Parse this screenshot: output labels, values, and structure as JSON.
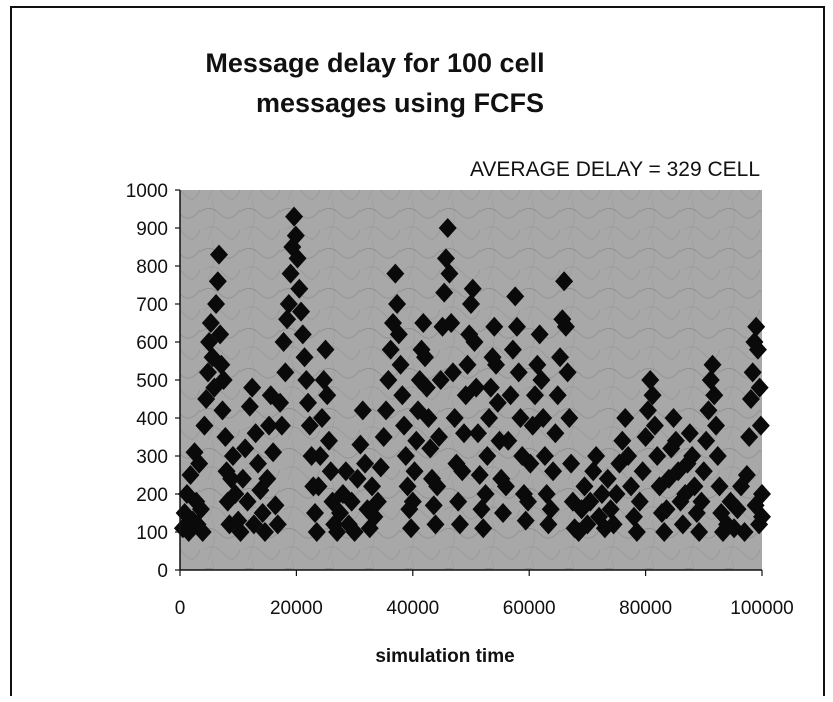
{
  "chart_data": {
    "type": "scatter",
    "title_line1": "Message delay for 100 cell",
    "title_line2": "messages using FCFS",
    "annotation": "AVERAGE DELAY = 329 CELL",
    "xlabel": "simulation time",
    "ylabel": "",
    "xlim": [
      0,
      100000
    ],
    "ylim": [
      0,
      1000
    ],
    "x_ticks": [
      "0",
      "20000",
      "40000",
      "60000",
      "80000",
      "100000"
    ],
    "y_ticks": [
      "0",
      "100",
      "200",
      "300",
      "400",
      "500",
      "600",
      "700",
      "800",
      "900",
      "1000"
    ],
    "grid": false,
    "legend": "none",
    "marker_color": "#0a0a0a",
    "plot_background": "#a8a8a8",
    "series": [
      {
        "marker": "diamond",
        "points": [
          [
            500,
            110
          ],
          [
            800,
            150
          ],
          [
            1200,
            200
          ],
          [
            1500,
            100
          ],
          [
            1800,
            250
          ],
          [
            2200,
            130
          ],
          [
            2500,
            310
          ],
          [
            2800,
            180
          ],
          [
            3000,
            120
          ],
          [
            3300,
            280
          ],
          [
            3600,
            160
          ],
          [
            3900,
            100
          ],
          [
            4200,
            380
          ],
          [
            4500,
            450
          ],
          [
            4800,
            520
          ],
          [
            5000,
            600
          ],
          [
            5300,
            650
          ],
          [
            5600,
            560
          ],
          [
            5900,
            480
          ],
          [
            6200,
            700
          ],
          [
            6500,
            760
          ],
          [
            6700,
            830
          ],
          [
            6900,
            620
          ],
          [
            7100,
            540
          ],
          [
            7300,
            420
          ],
          [
            7500,
            500
          ],
          [
            7800,
            350
          ],
          [
            8000,
            260
          ],
          [
            8200,
            180
          ],
          [
            8500,
            120
          ],
          [
            8800,
            240
          ],
          [
            9100,
            300
          ],
          [
            9500,
            200
          ],
          [
            10000,
            130
          ],
          [
            10400,
            100
          ],
          [
            10800,
            240
          ],
          [
            11200,
            320
          ],
          [
            11600,
            180
          ],
          [
            12000,
            430
          ],
          [
            12400,
            480
          ],
          [
            12700,
            120
          ],
          [
            13000,
            360
          ],
          [
            13400,
            280
          ],
          [
            13800,
            210
          ],
          [
            14200,
            150
          ],
          [
            14600,
            100
          ],
          [
            15000,
            240
          ],
          [
            15300,
            380
          ],
          [
            15600,
            460
          ],
          [
            16000,
            310
          ],
          [
            16400,
            170
          ],
          [
            16800,
            120
          ],
          [
            17200,
            440
          ],
          [
            17500,
            380
          ],
          [
            17800,
            600
          ],
          [
            18100,
            520
          ],
          [
            18400,
            660
          ],
          [
            18700,
            700
          ],
          [
            19000,
            780
          ],
          [
            19300,
            850
          ],
          [
            19600,
            930
          ],
          [
            19900,
            880
          ],
          [
            20200,
            820
          ],
          [
            20500,
            740
          ],
          [
            20800,
            680
          ],
          [
            21100,
            620
          ],
          [
            21400,
            560
          ],
          [
            21700,
            500
          ],
          [
            22000,
            440
          ],
          [
            22300,
            380
          ],
          [
            22600,
            300
          ],
          [
            22900,
            220
          ],
          [
            23200,
            150
          ],
          [
            23500,
            100
          ],
          [
            23800,
            220
          ],
          [
            24100,
            300
          ],
          [
            24400,
            400
          ],
          [
            24700,
            500
          ],
          [
            25000,
            580
          ],
          [
            25300,
            460
          ],
          [
            25600,
            340
          ],
          [
            25900,
            260
          ],
          [
            26200,
            180
          ],
          [
            26500,
            120
          ],
          [
            27000,
            100
          ],
          [
            27500,
            150
          ],
          [
            28000,
            200
          ],
          [
            28500,
            260
          ],
          [
            29000,
            120
          ],
          [
            29500,
            180
          ],
          [
            30000,
            100
          ],
          [
            30500,
            240
          ],
          [
            31000,
            330
          ],
          [
            31400,
            420
          ],
          [
            31800,
            280
          ],
          [
            32200,
            160
          ],
          [
            32600,
            110
          ],
          [
            33000,
            220
          ],
          [
            33400,
            140
          ],
          [
            34000,
            180
          ],
          [
            34500,
            270
          ],
          [
            35000,
            350
          ],
          [
            35400,
            420
          ],
          [
            35800,
            500
          ],
          [
            36200,
            580
          ],
          [
            36600,
            650
          ],
          [
            37000,
            780
          ],
          [
            37300,
            700
          ],
          [
            37600,
            620
          ],
          [
            37900,
            540
          ],
          [
            38200,
            460
          ],
          [
            38500,
            380
          ],
          [
            38800,
            300
          ],
          [
            39100,
            220
          ],
          [
            39400,
            160
          ],
          [
            39700,
            110
          ],
          [
            40000,
            180
          ],
          [
            40300,
            260
          ],
          [
            40600,
            340
          ],
          [
            40900,
            420
          ],
          [
            41200,
            500
          ],
          [
            41500,
            580
          ],
          [
            41800,
            650
          ],
          [
            42100,
            560
          ],
          [
            42400,
            480
          ],
          [
            42700,
            400
          ],
          [
            43000,
            320
          ],
          [
            43300,
            240
          ],
          [
            43600,
            170
          ],
          [
            43900,
            120
          ],
          [
            44200,
            220
          ],
          [
            44500,
            350
          ],
          [
            44800,
            500
          ],
          [
            45100,
            640
          ],
          [
            45400,
            730
          ],
          [
            45700,
            820
          ],
          [
            46000,
            900
          ],
          [
            46300,
            780
          ],
          [
            46600,
            650
          ],
          [
            46900,
            520
          ],
          [
            47200,
            400
          ],
          [
            47500,
            280
          ],
          [
            47800,
            180
          ],
          [
            48100,
            120
          ],
          [
            48500,
            260
          ],
          [
            48800,
            360
          ],
          [
            49100,
            460
          ],
          [
            49400,
            540
          ],
          [
            49700,
            620
          ],
          [
            50000,
            700
          ],
          [
            50300,
            740
          ],
          [
            50600,
            600
          ],
          [
            50900,
            480
          ],
          [
            51200,
            360
          ],
          [
            51500,
            250
          ],
          [
            51800,
            160
          ],
          [
            52100,
            110
          ],
          [
            52500,
            200
          ],
          [
            52800,
            300
          ],
          [
            53100,
            400
          ],
          [
            53400,
            480
          ],
          [
            53700,
            560
          ],
          [
            54000,
            640
          ],
          [
            54300,
            540
          ],
          [
            54600,
            440
          ],
          [
            54900,
            340
          ],
          [
            55200,
            240
          ],
          [
            55500,
            150
          ],
          [
            56000,
            220
          ],
          [
            56400,
            340
          ],
          [
            56800,
            460
          ],
          [
            57200,
            580
          ],
          [
            57600,
            720
          ],
          [
            57900,
            640
          ],
          [
            58200,
            520
          ],
          [
            58500,
            400
          ],
          [
            58800,
            300
          ],
          [
            59100,
            200
          ],
          [
            59400,
            130
          ],
          [
            59800,
            180
          ],
          [
            60200,
            280
          ],
          [
            60600,
            380
          ],
          [
            61000,
            460
          ],
          [
            61400,
            540
          ],
          [
            61800,
            620
          ],
          [
            62100,
            500
          ],
          [
            62400,
            400
          ],
          [
            62700,
            300
          ],
          [
            63000,
            200
          ],
          [
            63300,
            120
          ],
          [
            63700,
            160
          ],
          [
            64100,
            260
          ],
          [
            64500,
            360
          ],
          [
            64900,
            460
          ],
          [
            65300,
            560
          ],
          [
            65700,
            660
          ],
          [
            66000,
            760
          ],
          [
            66300,
            640
          ],
          [
            66600,
            520
          ],
          [
            66900,
            400
          ],
          [
            67200,
            280
          ],
          [
            67500,
            180
          ],
          [
            67800,
            110
          ],
          [
            68500,
            100
          ],
          [
            69000,
            160
          ],
          [
            69500,
            220
          ],
          [
            70000,
            120
          ],
          [
            70500,
            180
          ],
          [
            71000,
            260
          ],
          [
            71500,
            300
          ],
          [
            72000,
            140
          ],
          [
            72500,
            200
          ],
          [
            73000,
            110
          ],
          [
            73500,
            240
          ],
          [
            74000,
            160
          ],
          [
            74500,
            120
          ],
          [
            75000,
            200
          ],
          [
            75500,
            280
          ],
          [
            76000,
            340
          ],
          [
            76500,
            400
          ],
          [
            77000,
            300
          ],
          [
            77500,
            220
          ],
          [
            78000,
            140
          ],
          [
            78500,
            100
          ],
          [
            79000,
            180
          ],
          [
            79500,
            260
          ],
          [
            80000,
            350
          ],
          [
            80400,
            420
          ],
          [
            80800,
            500
          ],
          [
            81200,
            460
          ],
          [
            81600,
            380
          ],
          [
            82000,
            300
          ],
          [
            82400,
            220
          ],
          [
            82800,
            150
          ],
          [
            83200,
            100
          ],
          [
            83600,
            160
          ],
          [
            84000,
            240
          ],
          [
            84400,
            320
          ],
          [
            84800,
            400
          ],
          [
            85200,
            340
          ],
          [
            85600,
            260
          ],
          [
            86000,
            180
          ],
          [
            86400,
            120
          ],
          [
            86800,
            200
          ],
          [
            87200,
            280
          ],
          [
            87600,
            360
          ],
          [
            88000,
            300
          ],
          [
            88400,
            220
          ],
          [
            88800,
            150
          ],
          [
            89200,
            100
          ],
          [
            89600,
            180
          ],
          [
            90000,
            260
          ],
          [
            90400,
            340
          ],
          [
            90800,
            420
          ],
          [
            91200,
            500
          ],
          [
            91500,
            540
          ],
          [
            91800,
            460
          ],
          [
            92100,
            380
          ],
          [
            92400,
            300
          ],
          [
            92700,
            220
          ],
          [
            93000,
            150
          ],
          [
            93300,
            100
          ],
          [
            94000,
            120
          ],
          [
            94600,
            180
          ],
          [
            95200,
            110
          ],
          [
            95800,
            160
          ],
          [
            96400,
            220
          ],
          [
            97000,
            100
          ],
          [
            97400,
            250
          ],
          [
            97800,
            350
          ],
          [
            98100,
            450
          ],
          [
            98400,
            520
          ],
          [
            98700,
            600
          ],
          [
            99000,
            640
          ],
          [
            99300,
            580
          ],
          [
            99600,
            480
          ],
          [
            99800,
            380
          ],
          [
            100000,
            200
          ],
          [
            100000,
            140
          ],
          [
            99500,
            120
          ],
          [
            98900,
            170
          ]
        ]
      }
    ]
  }
}
